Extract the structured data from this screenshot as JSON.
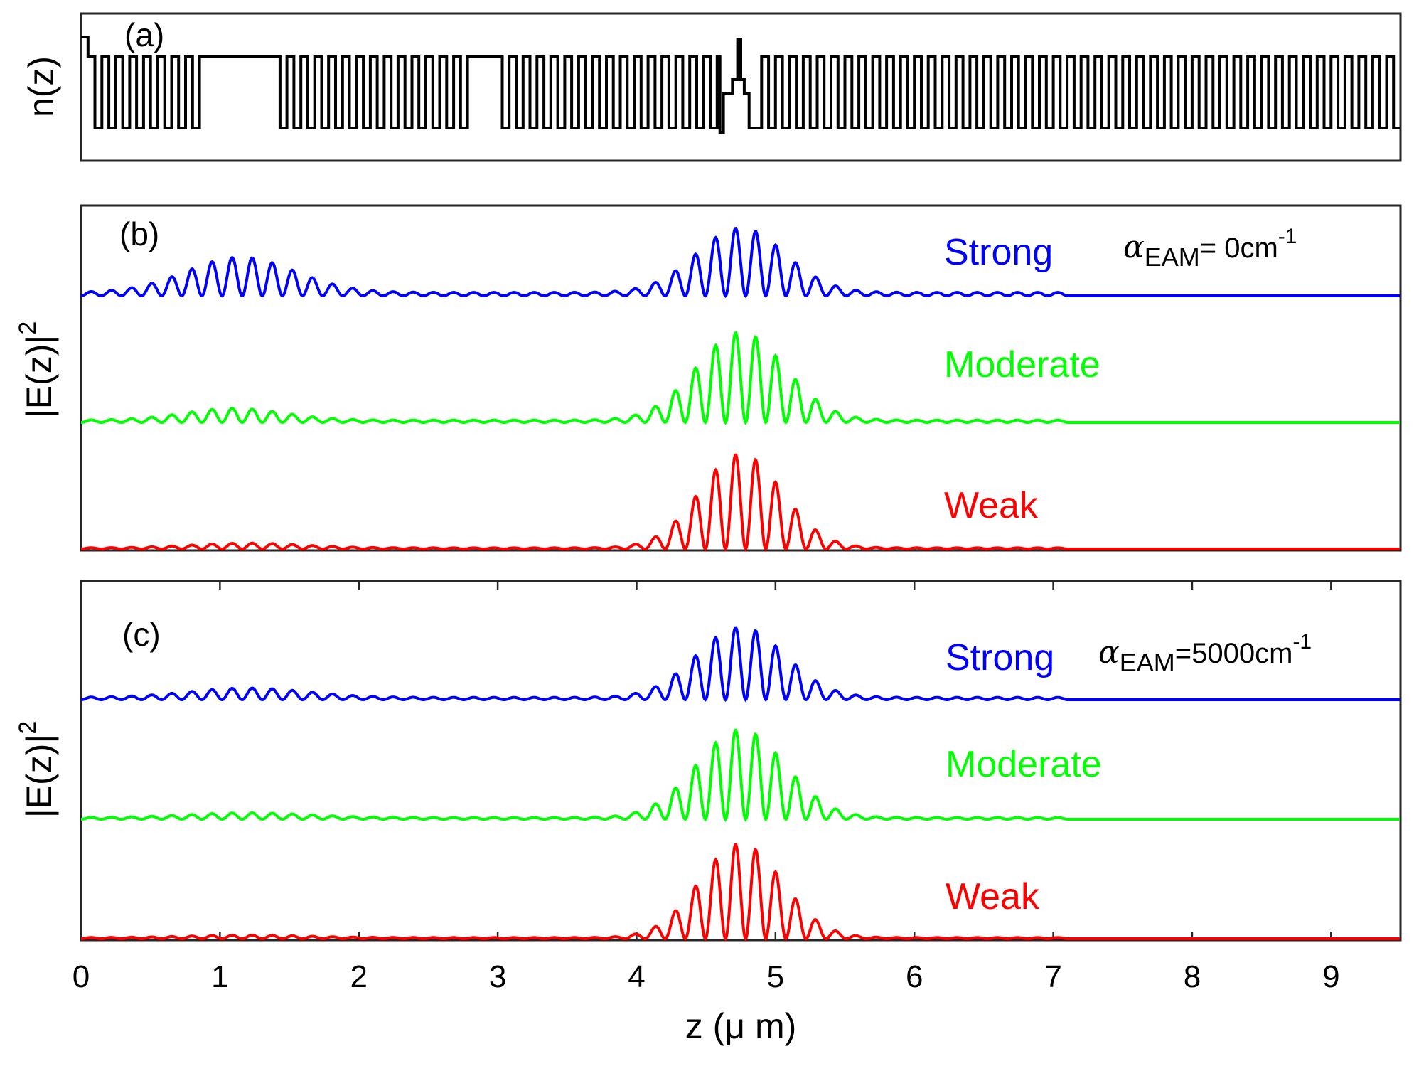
{
  "chart_data": [
    {
      "panel": "a",
      "type": "line",
      "label": "(a)",
      "ylabel": "n(z)",
      "xlim": [
        0,
        9.5
      ],
      "description_series": "refractive index profile: multilayer grating with two gaps and a central phase-shift defect",
      "profile": {
        "high": 1,
        "low": 0,
        "grating_period": 0.1,
        "segments": [
          {
            "from": 0.0,
            "to": 0.05,
            "level": "top"
          },
          {
            "from": 0.05,
            "to": 0.9,
            "type": "grating"
          },
          {
            "from": 0.9,
            "to": 1.38,
            "level": "high"
          },
          {
            "from": 1.38,
            "to": 2.78,
            "type": "grating"
          },
          {
            "from": 2.78,
            "to": 2.98,
            "level": "high"
          },
          {
            "from": 2.98,
            "to": 4.6,
            "type": "grating"
          },
          {
            "from": 4.6,
            "to": 4.9,
            "type": "defect"
          },
          {
            "from": 4.9,
            "to": 9.5,
            "type": "grating"
          }
        ]
      }
    },
    {
      "panel": "b",
      "type": "line",
      "label": "(b)",
      "ylabel": "|E(z)|",
      "ylabel_sup": "2",
      "alpha_label": {
        "symbol": "α",
        "sub": "EAM",
        "value": "= 0cm",
        "sup": "-1"
      },
      "xlim": [
        0,
        9.5
      ],
      "series": [
        {
          "name": "Strong",
          "color": "#0000ff",
          "peaks": [
            {
              "center": 4.75,
              "width": 0.45,
              "amp": 0.55
            },
            {
              "center": 1.15,
              "width": 0.55,
              "amp": 0.3
            }
          ],
          "floor": 0.03
        },
        {
          "name": "Moderate",
          "color": "#00ff00",
          "peaks": [
            {
              "center": 4.75,
              "width": 0.45,
              "amp": 0.75
            },
            {
              "center": 1.1,
              "width": 0.5,
              "amp": 0.1
            }
          ],
          "floor": 0.02
        },
        {
          "name": "Weak",
          "color": "#ff0000",
          "peaks": [
            {
              "center": 4.75,
              "width": 0.42,
              "amp": 0.8
            },
            {
              "center": 1.2,
              "width": 0.55,
              "amp": 0.04
            }
          ],
          "floor": 0.01
        }
      ]
    },
    {
      "panel": "c",
      "type": "line",
      "label": "(c)",
      "ylabel": "|E(z)|",
      "ylabel_sup": "2",
      "alpha_label": {
        "symbol": "α",
        "sub": "EAM",
        "value": "=5000cm",
        "sup": "-1"
      },
      "xlabel": "z (μ m)",
      "xlim": [
        0,
        9.5
      ],
      "xticks": [
        0,
        1,
        2,
        3,
        4,
        5,
        6,
        7,
        8,
        9
      ],
      "series": [
        {
          "name": "Strong",
          "color": "#0000ff",
          "peaks": [
            {
              "center": 4.75,
              "width": 0.45,
              "amp": 0.6
            },
            {
              "center": 1.2,
              "width": 0.6,
              "amp": 0.08
            }
          ],
          "floor": 0.02
        },
        {
          "name": "Moderate",
          "color": "#00ff00",
          "peaks": [
            {
              "center": 4.75,
              "width": 0.45,
              "amp": 0.75
            },
            {
              "center": 1.2,
              "width": 0.6,
              "amp": 0.04
            }
          ],
          "floor": 0.015
        },
        {
          "name": "Weak",
          "color": "#ff0000",
          "peaks": [
            {
              "center": 4.75,
              "width": 0.42,
              "amp": 0.8
            },
            {
              "center": 1.2,
              "width": 0.6,
              "amp": 0.02
            }
          ],
          "floor": 0.01
        }
      ]
    }
  ]
}
